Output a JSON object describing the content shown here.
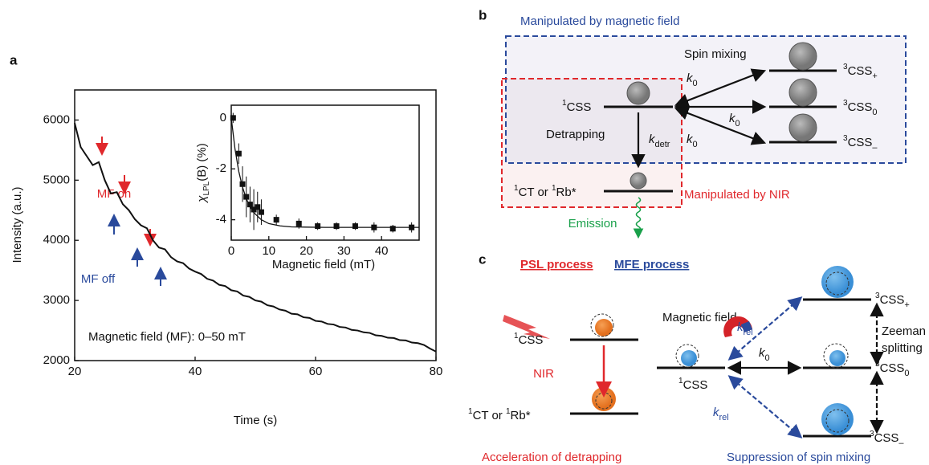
{
  "panel_labels": [
    "a",
    "b",
    "c"
  ],
  "chart_data": [
    {
      "type": "line",
      "x_label": "Time (s)",
      "y_label": "Intensity (a.u.)",
      "x": [
        20,
        21,
        22,
        23,
        24,
        25,
        26,
        27,
        28,
        29,
        30,
        31,
        32,
        33,
        34,
        35,
        36,
        37,
        38,
        39,
        40,
        41,
        42,
        43,
        44,
        45,
        46,
        47,
        48,
        49,
        50,
        51,
        52,
        53,
        54,
        55,
        56,
        57,
        58,
        59,
        60,
        61,
        62,
        63,
        64,
        65,
        66,
        67,
        68,
        69,
        70,
        71,
        72,
        73,
        74,
        75,
        76,
        77,
        78,
        79,
        80
      ],
      "series": [
        {
          "color": "#111111",
          "values": [
            5950,
            5550,
            5400,
            5250,
            5300,
            5000,
            4780,
            4800,
            4600,
            4500,
            4350,
            4250,
            4200,
            4000,
            3880,
            3850,
            3720,
            3650,
            3620,
            3530,
            3480,
            3440,
            3360,
            3330,
            3260,
            3240,
            3170,
            3150,
            3080,
            3060,
            3000,
            2980,
            2920,
            2900,
            2850,
            2830,
            2780,
            2770,
            2720,
            2710,
            2660,
            2650,
            2610,
            2600,
            2560,
            2550,
            2510,
            2500,
            2470,
            2460,
            2420,
            2410,
            2380,
            2375,
            2340,
            2335,
            2300,
            2290,
            2260,
            2200,
            2150
          ]
        }
      ],
      "xlim": [
        20,
        80
      ],
      "xticks": [
        20,
        40,
        60,
        80
      ],
      "ylim": [
        2000,
        6500
      ],
      "yticks": [
        2000,
        3000,
        4000,
        5000,
        6000
      ],
      "annotations": [
        "MF on",
        "MF off",
        "Magnetic field (MF): 0–50 mT"
      ]
    },
    {
      "type": "scatter",
      "x_label": "Magnetic field (mT)",
      "y_label": {
        "symbol": "χ",
        "subscript": "LPL",
        "text": "(B) (%)"
      },
      "series": [
        {
          "color": "#111111",
          "x": [
            0.5,
            2,
            3,
            4,
            5,
            6,
            7,
            8,
            12,
            18,
            23,
            28,
            33,
            38,
            43,
            48
          ],
          "values": [
            0,
            -1.4,
            -2.6,
            -3.1,
            -3.4,
            -3.6,
            -3.5,
            -3.7,
            -4.0,
            -4.15,
            -4.25,
            -4.25,
            -4.25,
            -4.3,
            -4.35,
            -4.3
          ],
          "errors": [
            0.2,
            0.4,
            0.7,
            0.8,
            0.7,
            0.8,
            0.6,
            0.5,
            0.2,
            0.2,
            0.15,
            0.15,
            0.15,
            0.2,
            0.15,
            0.2
          ]
        },
        {
          "color": "#111111",
          "x": [
            0,
            1,
            2,
            3,
            4,
            5,
            6,
            8,
            10,
            13,
            16,
            20,
            25,
            30,
            40,
            50
          ],
          "values": [
            0,
            -1.22,
            -2.1,
            -2.72,
            -3.17,
            -3.49,
            -3.72,
            -4.0,
            -4.15,
            -4.24,
            -4.28,
            -4.29,
            -4.3,
            -4.3,
            -4.3,
            -4.3
          ]
        }
      ],
      "xlim": [
        0,
        50
      ],
      "xticks": [
        0,
        10,
        20,
        30,
        40
      ],
      "ylim": [
        -4.8,
        0.5
      ],
      "yticks": [
        0,
        -2,
        -4
      ]
    }
  ],
  "panel_b": {
    "blue_title": "Manipulated by magnetic field",
    "red_title": "Manipulated by NIR",
    "spin_mixing": "Spin mixing",
    "detrapping": "Detrapping",
    "emission": "Emission",
    "singlet": {
      "sup": "1",
      "main": "CSS"
    },
    "ct": {
      "sup": "1",
      "main": "CT or ",
      "sup2": "1",
      "main2": "Rb*"
    },
    "k_detr": {
      "main": "k",
      "sub": "detr"
    },
    "k0": [
      {
        "main": "k",
        "sub": "0"
      },
      {
        "main": "k",
        "sub": "0"
      },
      {
        "main": "k",
        "sub": "0"
      }
    ],
    "triplets": [
      {
        "sup": "3",
        "main": "CSS",
        "sub": "+"
      },
      {
        "sup": "3",
        "main": "CSS",
        "sub": "0"
      },
      {
        "sup": "3",
        "main": "CSS",
        "sub": "–"
      }
    ]
  },
  "panel_c": {
    "psl_title": "PSL process",
    "mfe_title": "MFE process",
    "nir": "NIR",
    "magnetic_field": "Magnetic field",
    "zeeman": "Zeeman",
    "splitting": "splitting",
    "psl_caption": "Acceleration of detrapping",
    "mfe_caption": "Suppression of spin mixing",
    "psl_singlet": {
      "sup": "1",
      "main": "CSS"
    },
    "psl_ct": {
      "sup": "1",
      "main": "CT or ",
      "sup2": "1",
      "main2": "Rb*"
    },
    "mfe_singlet": {
      "sup": "1",
      "main": "CSS"
    },
    "k0": {
      "main": "k",
      "sub": "0"
    },
    "k_rel": [
      {
        "main": "k",
        "sub": "rel"
      },
      {
        "main": "k",
        "sub": "rel"
      }
    ],
    "triplets": [
      {
        "sup": "3",
        "main": "CSS",
        "sub": "+"
      },
      {
        "sup": "3",
        "main": "CSS",
        "sub": "0"
      },
      {
        "sup": "3",
        "main": "CSS",
        "sub": "–"
      }
    ]
  }
}
